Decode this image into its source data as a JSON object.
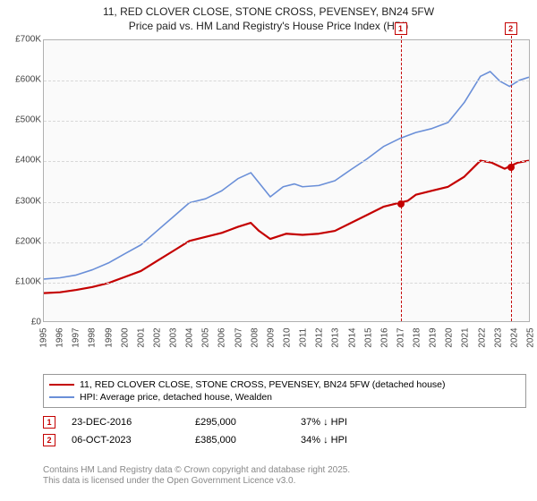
{
  "title": {
    "line1": "11, RED CLOVER CLOSE, STONE CROSS, PEVENSEY, BN24 5FW",
    "line2": "Price paid vs. HM Land Registry's House Price Index (HPI)"
  },
  "chart": {
    "type": "line",
    "background_color": "#fafafa",
    "grid_color": "#d8d8d8",
    "border_color": "#b0b0b0",
    "x": {
      "min": 1995,
      "max": 2025,
      "ticks": [
        1995,
        1996,
        1997,
        1998,
        1999,
        2000,
        2001,
        2002,
        2003,
        2004,
        2005,
        2006,
        2007,
        2008,
        2009,
        2010,
        2011,
        2012,
        2013,
        2014,
        2015,
        2016,
        2017,
        2018,
        2019,
        2020,
        2021,
        2022,
        2023,
        2024,
        2025
      ]
    },
    "y": {
      "min": 0,
      "max": 700000,
      "ticks": [
        0,
        100000,
        200000,
        300000,
        400000,
        500000,
        600000,
        700000
      ],
      "tick_labels": [
        "£0",
        "£100K",
        "£200K",
        "£300K",
        "£400K",
        "£500K",
        "£600K",
        "£700K"
      ]
    },
    "series": [
      {
        "name": "price-paid",
        "label": "11, RED CLOVER CLOSE, STONE CROSS, PEVENSEY, BN24 5FW (detached house)",
        "color": "#c40000",
        "line_width": 2.2,
        "points": [
          [
            1995,
            70000
          ],
          [
            1996,
            72000
          ],
          [
            1997,
            78000
          ],
          [
            1998,
            85000
          ],
          [
            1999,
            95000
          ],
          [
            2000,
            110000
          ],
          [
            2001,
            125000
          ],
          [
            2002,
            150000
          ],
          [
            2003,
            175000
          ],
          [
            2004,
            200000
          ],
          [
            2005,
            210000
          ],
          [
            2006,
            220000
          ],
          [
            2007,
            235000
          ],
          [
            2007.8,
            245000
          ],
          [
            2008.3,
            225000
          ],
          [
            2009,
            205000
          ],
          [
            2010,
            218000
          ],
          [
            2011,
            215000
          ],
          [
            2012,
            218000
          ],
          [
            2013,
            225000
          ],
          [
            2014,
            245000
          ],
          [
            2015,
            265000
          ],
          [
            2016,
            285000
          ],
          [
            2016.98,
            295000
          ],
          [
            2017.5,
            300000
          ],
          [
            2018,
            315000
          ],
          [
            2019,
            325000
          ],
          [
            2020,
            335000
          ],
          [
            2021,
            360000
          ],
          [
            2022,
            400000
          ],
          [
            2022.7,
            395000
          ],
          [
            2023.5,
            380000
          ],
          [
            2023.77,
            385000
          ],
          [
            2024.3,
            395000
          ],
          [
            2025,
            400000
          ]
        ]
      },
      {
        "name": "hpi",
        "label": "HPI: Average price, detached house, Wealden",
        "color": "#6a8fd8",
        "line_width": 1.6,
        "points": [
          [
            1995,
            105000
          ],
          [
            1996,
            108000
          ],
          [
            1997,
            115000
          ],
          [
            1998,
            128000
          ],
          [
            1999,
            145000
          ],
          [
            2000,
            168000
          ],
          [
            2001,
            190000
          ],
          [
            2002,
            225000
          ],
          [
            2003,
            260000
          ],
          [
            2004,
            295000
          ],
          [
            2005,
            305000
          ],
          [
            2006,
            325000
          ],
          [
            2007,
            355000
          ],
          [
            2007.8,
            370000
          ],
          [
            2008.3,
            345000
          ],
          [
            2009,
            310000
          ],
          [
            2009.8,
            335000
          ],
          [
            2010.5,
            342000
          ],
          [
            2011,
            335000
          ],
          [
            2012,
            338000
          ],
          [
            2013,
            350000
          ],
          [
            2014,
            378000
          ],
          [
            2015,
            405000
          ],
          [
            2016,
            435000
          ],
          [
            2017,
            455000
          ],
          [
            2018,
            470000
          ],
          [
            2019,
            480000
          ],
          [
            2020,
            495000
          ],
          [
            2021,
            545000
          ],
          [
            2022,
            610000
          ],
          [
            2022.6,
            622000
          ],
          [
            2023.2,
            598000
          ],
          [
            2023.8,
            585000
          ],
          [
            2024.4,
            600000
          ],
          [
            2025,
            608000
          ]
        ]
      }
    ],
    "markers": [
      {
        "id": "1",
        "x": 2016.98,
        "y": 295000,
        "label_top": true
      },
      {
        "id": "2",
        "x": 2023.77,
        "y": 385000,
        "label_top": true
      }
    ]
  },
  "legend": {
    "rows": [
      {
        "color": "#c40000",
        "width": 2.5,
        "label": "11, RED CLOVER CLOSE, STONE CROSS, PEVENSEY, BN24 5FW (detached house)"
      },
      {
        "color": "#6a8fd8",
        "width": 2,
        "label": "HPI: Average price, detached house, Wealden"
      }
    ]
  },
  "events": [
    {
      "id": "1",
      "date": "23-DEC-2016",
      "price": "£295,000",
      "pct": "37% ↓ HPI"
    },
    {
      "id": "2",
      "date": "06-OCT-2023",
      "price": "£385,000",
      "pct": "34% ↓ HPI"
    }
  ],
  "footer": {
    "line1": "Contains HM Land Registry data © Crown copyright and database right 2025.",
    "line2": "This data is licensed under the Open Government Licence v3.0."
  },
  "colors": {
    "accent_red": "#c40000",
    "accent_blue": "#6a8fd8",
    "text": "#222222",
    "muted": "#888888"
  },
  "fonts": {
    "title_size": 12,
    "tick_size": 10,
    "legend_size": 10.5,
    "event_size": 11,
    "footer_size": 10
  }
}
